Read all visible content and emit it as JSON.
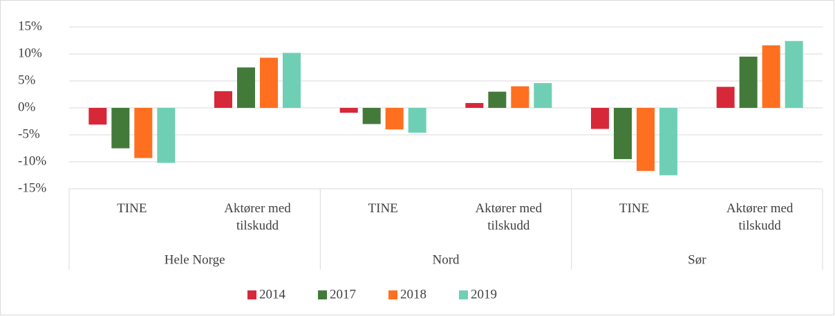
{
  "chart_data": {
    "type": "bar",
    "categories": [
      "TINE",
      "Aktører med tilskudd",
      "TINE",
      "Aktører med tilskudd",
      "TINE",
      "Aktører med tilskudd"
    ],
    "groups": [
      "Hele Norge",
      "Nord",
      "Sør"
    ],
    "series": [
      {
        "name": "2014",
        "color": "#d62839",
        "values": [
          -3.1,
          3.1,
          -0.9,
          0.9,
          -3.9,
          3.9
        ]
      },
      {
        "name": "2017",
        "color": "#437a3a",
        "values": [
          -7.5,
          7.5,
          -3,
          3,
          -9.5,
          9.5
        ]
      },
      {
        "name": "2018",
        "color": "#ff6f20",
        "values": [
          -9.3,
          9.3,
          -4,
          4,
          -11.7,
          11.6
        ]
      },
      {
        "name": "2019",
        "color": "#6fcfb5",
        "values": [
          -10.2,
          10.2,
          -4.6,
          4.6,
          -12.5,
          12.4
        ]
      }
    ],
    "ylim": [
      -15,
      15
    ],
    "yticks": [
      {
        "value": -15,
        "label": "-15%"
      },
      {
        "value": -10,
        "label": "-10%"
      },
      {
        "value": -5,
        "label": "-5%"
      },
      {
        "value": 0,
        "label": "0%"
      },
      {
        "value": 5,
        "label": "5%"
      },
      {
        "value": 10,
        "label": "10%"
      },
      {
        "value": 15,
        "label": "15%"
      }
    ],
    "grid": true,
    "legend": "bottom"
  }
}
